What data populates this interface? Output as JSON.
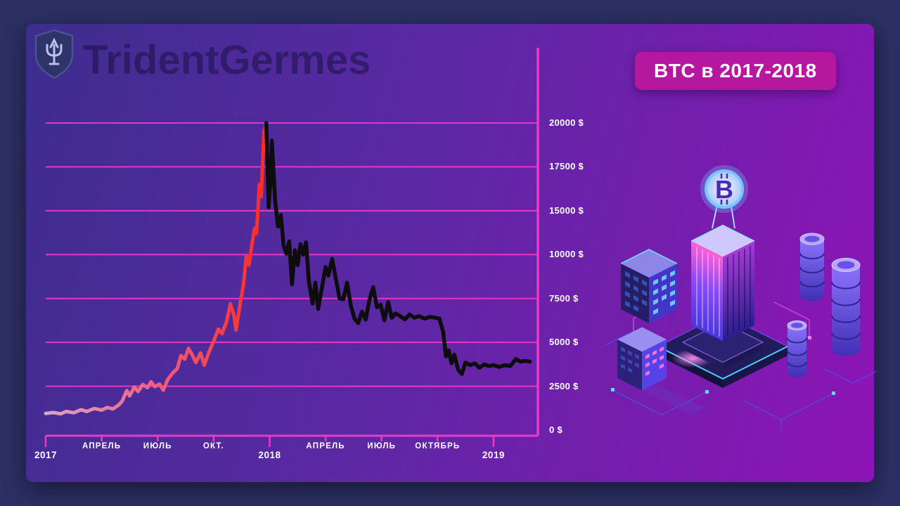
{
  "page": {
    "background": "#2b2f63",
    "panel": {
      "gradient": [
        "#3d2d8e",
        "#5c28a4",
        "#8e14b6"
      ]
    }
  },
  "header": {
    "watermark": "TridentGermes",
    "logo_icon": "trident-shield-icon",
    "badge": {
      "label": "BTC в 2017-2018",
      "background": "#b5179e",
      "color": "#ffffff"
    }
  },
  "chart_data": {
    "type": "line",
    "title": "BTC в 2017-2018",
    "xlabel": "",
    "ylabel": "",
    "currency": "$",
    "grid": true,
    "legend_position": "none",
    "axis_color": "#e83bc6",
    "label_color": "#ffffff",
    "ylim": [
      0,
      20000
    ],
    "y_scale": "equal-spaced-gridlines",
    "x_axis_unit": "months-from-2017-01",
    "y_ticks": [
      {
        "label": "20000 $",
        "value": 20000
      },
      {
        "label": "17500 $",
        "value": 17500
      },
      {
        "label": "15000 $",
        "value": 15000
      },
      {
        "label": "10000 $",
        "value": 10000
      },
      {
        "label": "7500 $",
        "value": 7500
      },
      {
        "label": "5000 $",
        "value": 5000
      },
      {
        "label": "2500 $",
        "value": 2500
      },
      {
        "label": "0 $",
        "value": 0
      }
    ],
    "x_ticks": [
      {
        "label": "2017",
        "month": 0,
        "kind": "year"
      },
      {
        "label": "АПРЕЛЬ",
        "month": 3,
        "kind": "month"
      },
      {
        "label": "ИЮЛЬ",
        "month": 6,
        "kind": "month"
      },
      {
        "label": "ОКТ.",
        "month": 9,
        "kind": "month"
      },
      {
        "label": "2018",
        "month": 12,
        "kind": "year"
      },
      {
        "label": "АПРЕЛЬ",
        "month": 15,
        "kind": "month"
      },
      {
        "label": "ИЮЛЬ",
        "month": 18,
        "kind": "month"
      },
      {
        "label": "ОКТЯБРЬ",
        "month": 21,
        "kind": "month"
      },
      {
        "label": "2019",
        "month": 24,
        "kind": "year"
      }
    ],
    "series": [
      {
        "name": "rally-2017",
        "style": "gradient",
        "gradient": [
          "#d9a6c9",
          "#ee5f82",
          "#ff2b24"
        ],
        "width": 5,
        "points": [
          [
            0,
            950
          ],
          [
            0.4,
            1000
          ],
          [
            0.8,
            930
          ],
          [
            1.1,
            1060
          ],
          [
            1.5,
            990
          ],
          [
            1.9,
            1160
          ],
          [
            2.2,
            1060
          ],
          [
            2.6,
            1230
          ],
          [
            3,
            1140
          ],
          [
            3.3,
            1290
          ],
          [
            3.6,
            1210
          ],
          [
            3.9,
            1420
          ],
          [
            4.1,
            1650
          ],
          [
            4.35,
            2250
          ],
          [
            4.5,
            1950
          ],
          [
            4.75,
            2450
          ],
          [
            4.95,
            2200
          ],
          [
            5.2,
            2600
          ],
          [
            5.45,
            2420
          ],
          [
            5.65,
            2750
          ],
          [
            5.85,
            2480
          ],
          [
            6.1,
            2620
          ],
          [
            6.3,
            2280
          ],
          [
            6.55,
            2900
          ],
          [
            6.8,
            3250
          ],
          [
            7.05,
            3500
          ],
          [
            7.25,
            4250
          ],
          [
            7.45,
            4050
          ],
          [
            7.65,
            4650
          ],
          [
            7.85,
            4300
          ],
          [
            8.05,
            3850
          ],
          [
            8.3,
            4400
          ],
          [
            8.5,
            3700
          ],
          [
            8.75,
            4450
          ],
          [
            9,
            5050
          ],
          [
            9.25,
            5750
          ],
          [
            9.45,
            5500
          ],
          [
            9.7,
            6200
          ],
          [
            9.9,
            7200
          ],
          [
            10.1,
            6500
          ],
          [
            10.2,
            5700
          ],
          [
            10.45,
            7400
          ],
          [
            10.6,
            8300
          ],
          [
            10.75,
            9900
          ],
          [
            10.9,
            9400
          ],
          [
            11.05,
            11200
          ],
          [
            11.2,
            13000
          ],
          [
            11.3,
            12400
          ],
          [
            11.45,
            16500
          ],
          [
            11.55,
            15800
          ],
          [
            11.7,
            19500
          ],
          [
            11.82,
            20000
          ]
        ]
      },
      {
        "name": "decline-2018",
        "style": "solid",
        "color": "#0d0d0d",
        "width": 5.5,
        "points": [
          [
            11.82,
            20000
          ],
          [
            11.95,
            15200
          ],
          [
            12.05,
            16800
          ],
          [
            12.12,
            19000
          ],
          [
            12.3,
            15500
          ],
          [
            12.45,
            13200
          ],
          [
            12.6,
            14500
          ],
          [
            12.75,
            11000
          ],
          [
            12.9,
            10100
          ],
          [
            13.05,
            11500
          ],
          [
            13.2,
            8300
          ],
          [
            13.35,
            10500
          ],
          [
            13.5,
            9400
          ],
          [
            13.65,
            11200
          ],
          [
            13.8,
            10000
          ],
          [
            13.95,
            11400
          ],
          [
            14.1,
            8500
          ],
          [
            14.3,
            7200
          ],
          [
            14.45,
            8400
          ],
          [
            14.6,
            6900
          ],
          [
            14.8,
            8100
          ],
          [
            15,
            9300
          ],
          [
            15.15,
            8800
          ],
          [
            15.35,
            9750
          ],
          [
            15.55,
            8600
          ],
          [
            15.75,
            7500
          ],
          [
            15.95,
            7450
          ],
          [
            16.15,
            8400
          ],
          [
            16.35,
            7100
          ],
          [
            16.55,
            6350
          ],
          [
            16.75,
            6100
          ],
          [
            16.95,
            6750
          ],
          [
            17.15,
            6300
          ],
          [
            17.35,
            7400
          ],
          [
            17.55,
            8150
          ],
          [
            17.75,
            7000
          ],
          [
            17.95,
            7150
          ],
          [
            18.15,
            6250
          ],
          [
            18.35,
            7300
          ],
          [
            18.55,
            6400
          ],
          [
            18.75,
            6650
          ],
          [
            19,
            6500
          ],
          [
            19.25,
            6300
          ],
          [
            19.5,
            6600
          ],
          [
            19.75,
            6400
          ],
          [
            20,
            6500
          ],
          [
            20.3,
            6350
          ],
          [
            20.6,
            6450
          ],
          [
            20.9,
            6400
          ],
          [
            21.1,
            6350
          ],
          [
            21.3,
            5600
          ],
          [
            21.45,
            4200
          ],
          [
            21.6,
            4550
          ],
          [
            21.75,
            3800
          ],
          [
            21.9,
            4300
          ],
          [
            22.1,
            3450
          ],
          [
            22.3,
            3200
          ],
          [
            22.5,
            3850
          ],
          [
            22.75,
            3700
          ],
          [
            23,
            3800
          ],
          [
            23.25,
            3550
          ],
          [
            23.5,
            3750
          ],
          [
            23.75,
            3650
          ],
          [
            24,
            3700
          ],
          [
            24.3,
            3600
          ],
          [
            24.6,
            3700
          ],
          [
            24.9,
            3650
          ],
          [
            25.2,
            4050
          ],
          [
            25.45,
            3900
          ],
          [
            25.7,
            3950
          ],
          [
            25.95,
            3900
          ]
        ]
      }
    ]
  },
  "illustration": {
    "name": "isometric-crypto-city",
    "elements": [
      "bitcoin-sign",
      "main-tower",
      "office-building",
      "small-building",
      "coin-stacks",
      "platform-base",
      "circuit-lines"
    ],
    "palette": [
      "#6fd2ff",
      "#7b4dff",
      "#ff57d8",
      "#1c1750"
    ]
  }
}
